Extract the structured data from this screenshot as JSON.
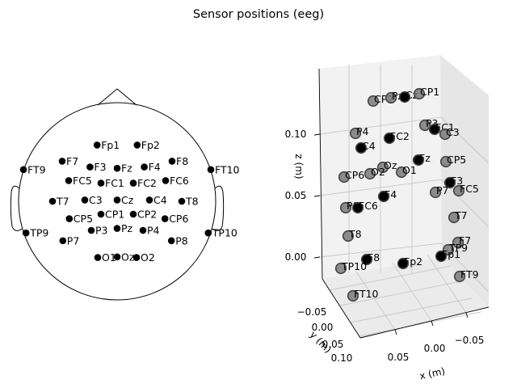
{
  "figure": {
    "title": "Sensor positions (eeg)"
  },
  "chart_data": [
    {
      "type": "scatter",
      "view": "topomap-2d",
      "head_outline": true,
      "points": [
        {
          "name": "Fp1",
          "x": -0.31,
          "y": 0.87
        },
        {
          "name": "Fp2",
          "x": 0.31,
          "y": 0.87
        },
        {
          "name": "F7",
          "x": -0.85,
          "y": 0.62
        },
        {
          "name": "F3",
          "x": -0.42,
          "y": 0.53
        },
        {
          "name": "Fz",
          "x": 0.0,
          "y": 0.51
        },
        {
          "name": "F4",
          "x": 0.42,
          "y": 0.53
        },
        {
          "name": "F8",
          "x": 0.85,
          "y": 0.62
        },
        {
          "name": "FT9",
          "x": -1.45,
          "y": 0.49
        },
        {
          "name": "FT10",
          "x": 1.45,
          "y": 0.49
        },
        {
          "name": "FC5",
          "x": -0.75,
          "y": 0.32
        },
        {
          "name": "FC1",
          "x": -0.25,
          "y": 0.28
        },
        {
          "name": "FC2",
          "x": 0.25,
          "y": 0.28
        },
        {
          "name": "FC6",
          "x": 0.75,
          "y": 0.32
        },
        {
          "name": "T7",
          "x": -1.0,
          "y": 0.0
        },
        {
          "name": "C3",
          "x": -0.5,
          "y": 0.02
        },
        {
          "name": "Cz",
          "x": 0.0,
          "y": 0.02
        },
        {
          "name": "C4",
          "x": 0.5,
          "y": 0.02
        },
        {
          "name": "T8",
          "x": 1.0,
          "y": 0.0
        },
        {
          "name": "CP5",
          "x": -0.74,
          "y": -0.27
        },
        {
          "name": "CP1",
          "x": -0.25,
          "y": -0.2
        },
        {
          "name": "CP2",
          "x": 0.25,
          "y": -0.2
        },
        {
          "name": "CP6",
          "x": 0.74,
          "y": -0.27
        },
        {
          "name": "TP9",
          "x": -1.41,
          "y": -0.49
        },
        {
          "name": "TP10",
          "x": 1.41,
          "y": -0.49
        },
        {
          "name": "P7",
          "x": -0.84,
          "y": -0.61
        },
        {
          "name": "P3",
          "x": -0.4,
          "y": -0.45
        },
        {
          "name": "Pz",
          "x": 0.0,
          "y": -0.42
        },
        {
          "name": "P4",
          "x": 0.4,
          "y": -0.45
        },
        {
          "name": "P8",
          "x": 0.84,
          "y": -0.61
        },
        {
          "name": "O1",
          "x": -0.3,
          "y": -0.87
        },
        {
          "name": "Oz",
          "x": 0.0,
          "y": -0.86
        },
        {
          "name": "O2",
          "x": 0.3,
          "y": -0.87
        }
      ]
    },
    {
      "type": "scatter",
      "view": "3d",
      "xlabel": "x (m)",
      "ylabel": "y (m)",
      "zlabel": "z (m)",
      "x_ticks": [
        "0.05",
        "0.00",
        "−0.05"
      ],
      "y_ticks": [
        "−0.05",
        "0.00",
        "0.05",
        "0.10"
      ],
      "z_ticks": [
        "0.00",
        "0.05",
        "0.10"
      ],
      "grid": true,
      "points": [
        {
          "name": "CP2",
          "dark": false
        },
        {
          "name": "Pz",
          "dark": false
        },
        {
          "name": "Cz",
          "dark": true
        },
        {
          "name": "CP1",
          "dark": false
        },
        {
          "name": "P3",
          "dark": false
        },
        {
          "name": "FC1",
          "dark": true
        },
        {
          "name": "C3",
          "dark": false
        },
        {
          "name": "P4",
          "dark": false
        },
        {
          "name": "FC2",
          "dark": true
        },
        {
          "name": "C4",
          "dark": true
        },
        {
          "name": "Fz",
          "dark": true
        },
        {
          "name": "CP5",
          "dark": false
        },
        {
          "name": "Oz",
          "dark": false
        },
        {
          "name": "O2",
          "dark": false
        },
        {
          "name": "O1",
          "dark": false
        },
        {
          "name": "CP6",
          "dark": false
        },
        {
          "name": "F3",
          "dark": true
        },
        {
          "name": "FC5",
          "dark": false
        },
        {
          "name": "P7",
          "dark": false
        },
        {
          "name": "F4",
          "dark": true
        },
        {
          "name": "P8",
          "dark": false
        },
        {
          "name": "FC6",
          "dark": true
        },
        {
          "name": "T7",
          "dark": false
        },
        {
          "name": "T8",
          "dark": false
        },
        {
          "name": "F7",
          "dark": false
        },
        {
          "name": "TP9",
          "dark": false
        },
        {
          "name": "Fp1",
          "dark": true
        },
        {
          "name": "F8",
          "dark": true
        },
        {
          "name": "Fp2",
          "dark": true
        },
        {
          "name": "TP10",
          "dark": false
        },
        {
          "name": "FT9",
          "dark": false
        },
        {
          "name": "FT10",
          "dark": false
        }
      ]
    }
  ]
}
